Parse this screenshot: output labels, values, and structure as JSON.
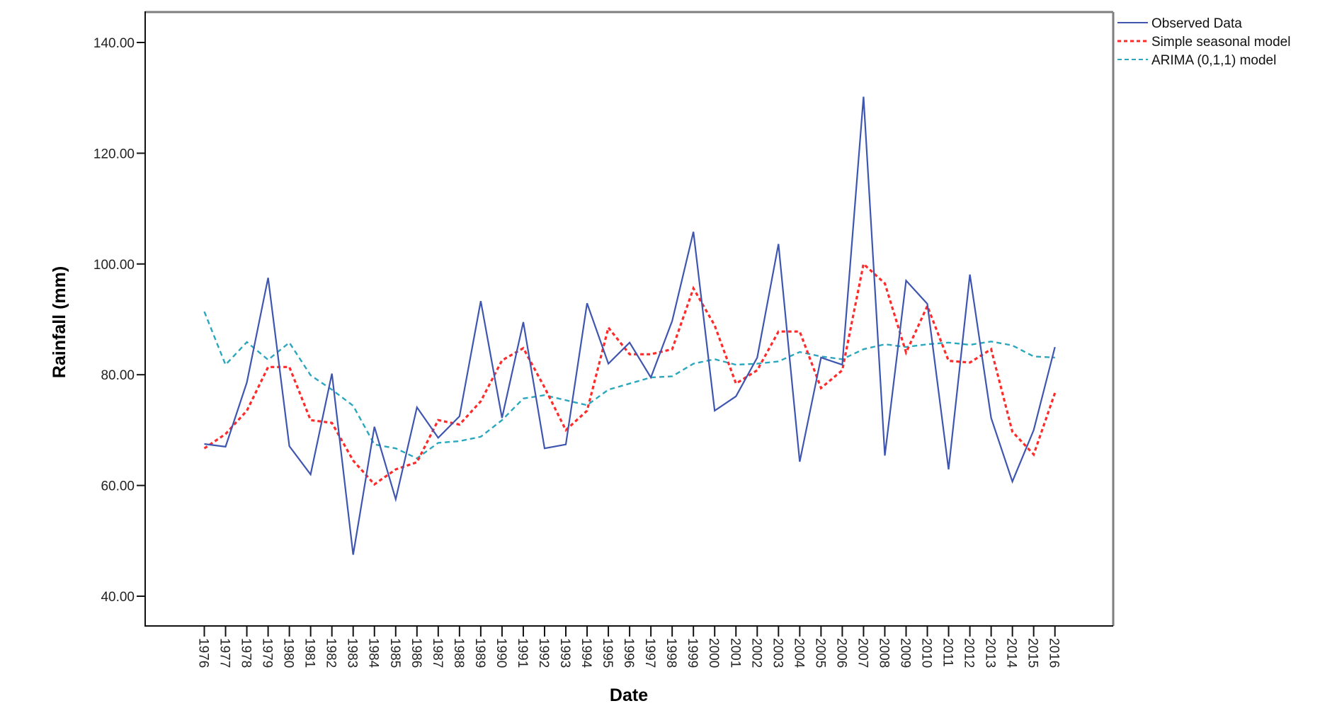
{
  "chart_data": {
    "type": "line",
    "title": "",
    "xlabel": "Date",
    "ylabel": "Rainfall (mm)",
    "ylim": [
      35,
      145
    ],
    "yticks": [
      40,
      60,
      80,
      100,
      120,
      140
    ],
    "ytick_labels": [
      "40.00",
      "60.00",
      "80.00",
      "100.00",
      "120.00",
      "140.00"
    ],
    "grid": false,
    "legend_position": "upper right (outside plot)",
    "x": [
      "1976",
      "1977",
      "1978",
      "1979",
      "1980",
      "1981",
      "1982",
      "1983",
      "1984",
      "1985",
      "1986",
      "1987",
      "1988",
      "1989",
      "1990",
      "1991",
      "1992",
      "1993",
      "1994",
      "1995",
      "1996",
      "1997",
      "1998",
      "1999",
      "2000",
      "2001",
      "2002",
      "2003",
      "2004",
      "2005",
      "2006",
      "2007",
      "2008",
      "2009",
      "2010",
      "2011",
      "2012",
      "2013",
      "2014",
      "2015",
      "2016"
    ],
    "series": [
      {
        "name": "Observed Data",
        "color": "#3f56b0",
        "style": "solid",
        "values": [
          67.5,
          67.0,
          78.6,
          97.5,
          67.1,
          62.0,
          80.2,
          47.5,
          70.6,
          57.5,
          74.1,
          68.6,
          72.5,
          93.3,
          72.2,
          89.5,
          66.7,
          67.4,
          92.9,
          82.0,
          85.8,
          79.5,
          89.7,
          105.8,
          73.5,
          76.1,
          83.1,
          103.6,
          64.3,
          83.1,
          81.8,
          130.2,
          65.4,
          97.0,
          92.8,
          62.9,
          98.1,
          72.2,
          60.7,
          70.0,
          85.0
        ]
      },
      {
        "name": "Simple seasonal model",
        "color": "#ff2a2a",
        "style": "dotted",
        "values": [
          66.7,
          69.3,
          73.5,
          81.4,
          81.4,
          71.8,
          71.3,
          64.5,
          60.2,
          62.9,
          64.2,
          71.8,
          71.0,
          75.2,
          82.6,
          84.8,
          77.7,
          70.0,
          73.5,
          88.5,
          83.7,
          83.7,
          84.6,
          95.6,
          88.9,
          78.4,
          80.8,
          87.8,
          87.8,
          77.6,
          80.8,
          100.0,
          96.5,
          84.0,
          92.4,
          82.5,
          82.2,
          84.6,
          69.7,
          65.6,
          76.7
        ]
      },
      {
        "name": "ARIMA (0,1,1) model",
        "color": "#2aa6bd",
        "style": "dashed",
        "values": [
          91.4,
          81.8,
          85.9,
          82.7,
          85.8,
          79.9,
          77.3,
          74.4,
          67.4,
          66.7,
          64.9,
          67.7,
          68.0,
          68.8,
          71.8,
          75.7,
          76.3,
          75.4,
          74.5,
          77.3,
          78.4,
          79.5,
          79.7,
          82.0,
          82.8,
          81.8,
          82.0,
          82.4,
          84.1,
          83.3,
          82.8,
          84.6,
          85.5,
          85.0,
          85.5,
          85.8,
          85.4,
          86.0,
          85.3,
          83.3,
          83.1
        ]
      }
    ]
  },
  "legend": {
    "items": [
      {
        "label": "Observed Data"
      },
      {
        "label": "Simple seasonal model"
      },
      {
        "label": "ARIMA (0,1,1) model"
      }
    ]
  },
  "axes": {
    "x_title": "Date",
    "y_title": "Rainfall (mm)"
  }
}
